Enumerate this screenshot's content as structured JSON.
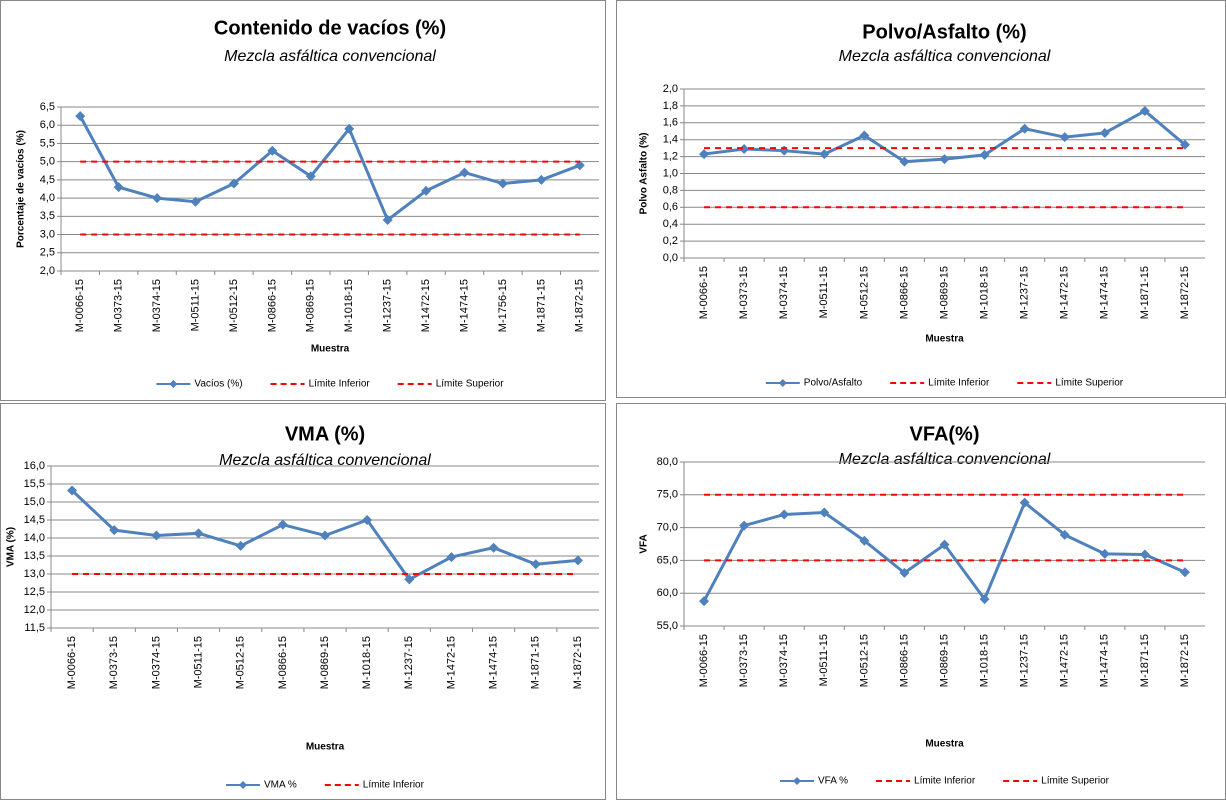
{
  "chart_data": [
    {
      "type": "line",
      "title": "Contenido de vacíos (%)",
      "subtitle": "Mezcla asfáltica convencional",
      "x_label": "Muestra",
      "y_label": "Porcentaje de  vacíos (%)",
      "categories": [
        "M-0066-15",
        "M-0373-15",
        "M-0374-15",
        "M-0511-15",
        "M-0512-15",
        "M-0866-15",
        "M-0869-15",
        "M-1018-15",
        "M-1237-15",
        "M-1472-15",
        "M-1474-15",
        "M-1756-15",
        "M-1871-15",
        "M-1872-15"
      ],
      "series": [
        {
          "name": "Vacíos (%)",
          "color": "#4f81bd",
          "marker": "diamond",
          "values": [
            6.25,
            4.3,
            4.0,
            3.9,
            4.4,
            5.3,
            4.6,
            5.9,
            3.4,
            4.2,
            4.7,
            4.4,
            4.5,
            4.9
          ]
        },
        {
          "name": "Límite Inferior",
          "color": "#ff0000",
          "dash": true,
          "values": [
            3,
            3,
            3,
            3,
            3,
            3,
            3,
            3,
            3,
            3,
            3,
            3,
            3,
            3
          ]
        },
        {
          "name": "Límite Superior",
          "color": "#ff0000",
          "dash": true,
          "values": [
            5,
            5,
            5,
            5,
            5,
            5,
            5,
            5,
            5,
            5,
            5,
            5,
            5,
            5
          ]
        }
      ],
      "ylim": [
        2,
        6.5
      ],
      "yticks": [
        {
          "value": 2,
          "label": "2,0"
        },
        {
          "value": 2.5,
          "label": "2,5"
        },
        {
          "value": 3,
          "label": "3,0"
        },
        {
          "value": 3.5,
          "label": "3,5"
        },
        {
          "value": 4,
          "label": "4,0"
        },
        {
          "value": 4.5,
          "label": "4,5"
        },
        {
          "value": 5,
          "label": "5,0"
        },
        {
          "value": 5.5,
          "label": "5,5"
        },
        {
          "value": 6,
          "label": "6,0"
        },
        {
          "value": 6.5,
          "label": "6,5"
        }
      ],
      "grid": true
    },
    {
      "type": "line",
      "title": "Polvo/Asfalto (%)",
      "subtitle": "Mezcla asfáltica convencional",
      "x_label": "Muestra",
      "y_label": "Polvo Asfalto (%)",
      "categories": [
        "M-0066-15",
        "M-0373-15",
        "M-0374-15",
        "M-0511-15",
        "M-0512-15",
        "M-0866-15",
        "M-0869-15",
        "M-1018-15",
        "M-1237-15",
        "M-1472-15",
        "M-1474-15",
        "M-1871-15",
        "M-1872-15"
      ],
      "series": [
        {
          "name": "Polvo/Asfalto",
          "color": "#4f81bd",
          "marker": "diamond",
          "values": [
            1.23,
            1.29,
            1.27,
            1.23,
            1.45,
            1.14,
            1.17,
            1.22,
            1.53,
            1.43,
            1.48,
            1.74,
            1.34
          ]
        },
        {
          "name": "Límite Inferior",
          "color": "#ff0000",
          "dash": true,
          "values": [
            0.6,
            0.6,
            0.6,
            0.6,
            0.6,
            0.6,
            0.6,
            0.6,
            0.6,
            0.6,
            0.6,
            0.6,
            0.6
          ]
        },
        {
          "name": "Límite Superior",
          "color": "#ff0000",
          "dash": true,
          "values": [
            1.3,
            1.3,
            1.3,
            1.3,
            1.3,
            1.3,
            1.3,
            1.3,
            1.3,
            1.3,
            1.3,
            1.3,
            1.3
          ]
        }
      ],
      "ylim": [
        0,
        2
      ],
      "yticks": [
        {
          "value": 0,
          "label": "0,0"
        },
        {
          "value": 0.2,
          "label": "0,2"
        },
        {
          "value": 0.4,
          "label": "0,4"
        },
        {
          "value": 0.6,
          "label": "0,6"
        },
        {
          "value": 0.8,
          "label": "0,8"
        },
        {
          "value": 1,
          "label": "1,0"
        },
        {
          "value": 1.2,
          "label": "1,2"
        },
        {
          "value": 1.4,
          "label": "1,4"
        },
        {
          "value": 1.6,
          "label": "1,6"
        },
        {
          "value": 1.8,
          "label": "1,8"
        },
        {
          "value": 2,
          "label": "2,0"
        }
      ],
      "grid": true
    },
    {
      "type": "line",
      "title": "VMA (%)",
      "subtitle": "Mezcla asfáltica convencional",
      "x_label": "Muestra",
      "y_label": "VMA (%)",
      "categories": [
        "M-0066-15",
        "M-0373-15",
        "M-0374-15",
        "M-0511-15",
        "M-0512-15",
        "M-0866-15",
        "M-0869-15",
        "M-1018-15",
        "M-1237-15",
        "M-1472-15",
        "M-1474-15",
        "M-1871-15",
        "M-1872-15"
      ],
      "series": [
        {
          "name": "VMA %",
          "color": "#4f81bd",
          "marker": "diamond",
          "values": [
            15.32,
            14.22,
            14.07,
            14.13,
            13.78,
            14.37,
            14.07,
            14.5,
            12.85,
            13.47,
            13.73,
            13.27,
            13.38
          ]
        },
        {
          "name": "Límite Inferior",
          "color": "#ff0000",
          "dash": true,
          "values": [
            13,
            13,
            13,
            13,
            13,
            13,
            13,
            13,
            13,
            13,
            13,
            13,
            13
          ]
        }
      ],
      "ylim": [
        11.5,
        16
      ],
      "yticks": [
        {
          "value": 11.5,
          "label": "11,5"
        },
        {
          "value": 12,
          "label": "12,0"
        },
        {
          "value": 12.5,
          "label": "12,5"
        },
        {
          "value": 13,
          "label": "13,0"
        },
        {
          "value": 13.5,
          "label": "13,5"
        },
        {
          "value": 14,
          "label": "14,0"
        },
        {
          "value": 14.5,
          "label": "14,5"
        },
        {
          "value": 15,
          "label": "15,0"
        },
        {
          "value": 15.5,
          "label": "15,5"
        },
        {
          "value": 16,
          "label": "16,0"
        }
      ],
      "grid": true
    },
    {
      "type": "line",
      "title": "VFA(%)",
      "subtitle": "Mezcla asfáltica convencional",
      "x_label": "Muestra",
      "y_label": "VFA",
      "categories": [
        "M-0066-15",
        "M-0373-15",
        "M-0374-15",
        "M-0511-15",
        "M-0512-15",
        "M-0866-15",
        "M-0869-15",
        "M-1018-15",
        "M-1237-15",
        "M-1472-15",
        "M-1474-15",
        "M-1871-15",
        "M-1872-15"
      ],
      "series": [
        {
          "name": "VFA %",
          "color": "#4f81bd",
          "marker": "diamond",
          "values": [
            58.8,
            70.3,
            72.0,
            72.3,
            68.0,
            63.1,
            67.4,
            59.1,
            73.8,
            68.9,
            66.0,
            65.9,
            63.2
          ]
        },
        {
          "name": "Límite Inferior",
          "color": "#ff0000",
          "dash": true,
          "values": [
            65,
            65,
            65,
            65,
            65,
            65,
            65,
            65,
            65,
            65,
            65,
            65,
            65
          ]
        },
        {
          "name": "Límite Superior",
          "color": "#ff0000",
          "dash": true,
          "values": [
            75,
            75,
            75,
            75,
            75,
            75,
            75,
            75,
            75,
            75,
            75,
            75,
            75
          ]
        }
      ],
      "ylim": [
        55,
        80
      ],
      "yticks": [
        {
          "value": 55,
          "label": "55,0"
        },
        {
          "value": 60,
          "label": "60,0"
        },
        {
          "value": 65,
          "label": "65,0"
        },
        {
          "value": 70,
          "label": "70,0"
        },
        {
          "value": 75,
          "label": "75,0"
        },
        {
          "value": 80,
          "label": "80,0"
        }
      ],
      "grid": true
    }
  ]
}
